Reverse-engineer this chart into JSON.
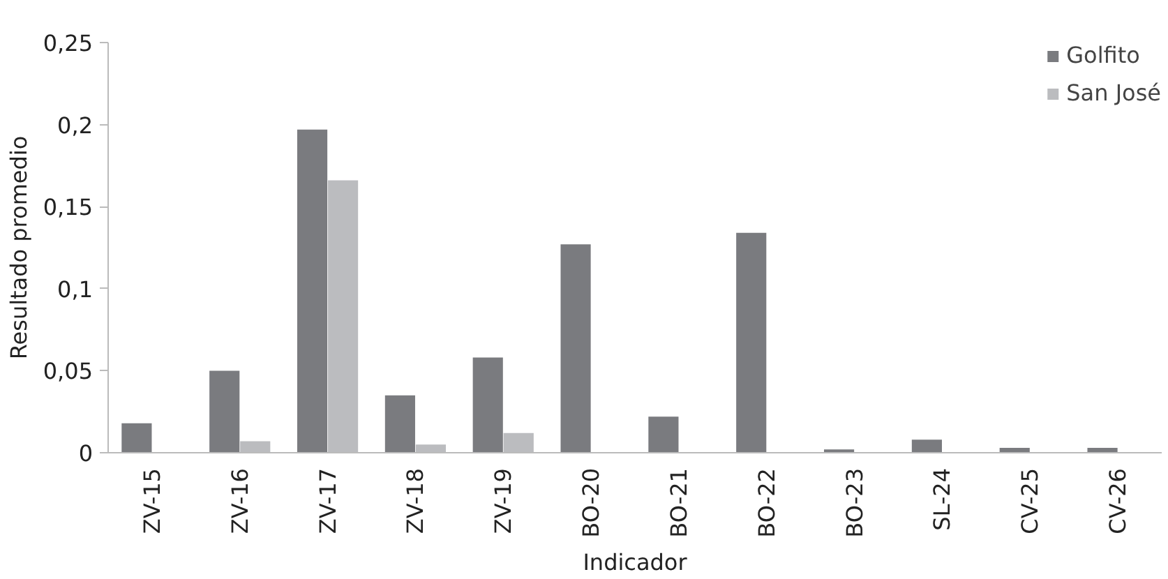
{
  "chart_data": {
    "type": "bar",
    "xlabel": "Indicador",
    "ylabel": "Resultado promedio",
    "categories": [
      "ZV-15",
      "ZV-16",
      "ZV-17",
      "ZV-18",
      "ZV-19",
      "BO-20",
      "BO-21",
      "BO-22",
      "BO-23",
      "SL-24",
      "CV-25",
      "CV-26"
    ],
    "series": [
      {
        "name": "Golfito",
        "color": "#7a7b7f",
        "values": [
          0.018,
          0.05,
          0.197,
          0.035,
          0.058,
          0.127,
          0.022,
          0.134,
          0.002,
          0.008,
          0.003,
          0.003
        ]
      },
      {
        "name": "San José",
        "color": "#bbbcbf",
        "values": [
          0,
          0.007,
          0.166,
          0.005,
          0.012,
          0,
          0,
          0,
          0,
          0,
          0,
          0
        ]
      }
    ],
    "ylim": [
      0,
      0.25
    ],
    "yticks": [
      {
        "value": 0,
        "label": "0"
      },
      {
        "value": 0.05,
        "label": "0,05"
      },
      {
        "value": 0.1,
        "label": "0,1"
      },
      {
        "value": 0.15,
        "label": "0,15"
      },
      {
        "value": 0.2,
        "label": "0,2"
      },
      {
        "value": 0.25,
        "label": "0,25"
      }
    ],
    "grid": false,
    "legend": "top right"
  }
}
